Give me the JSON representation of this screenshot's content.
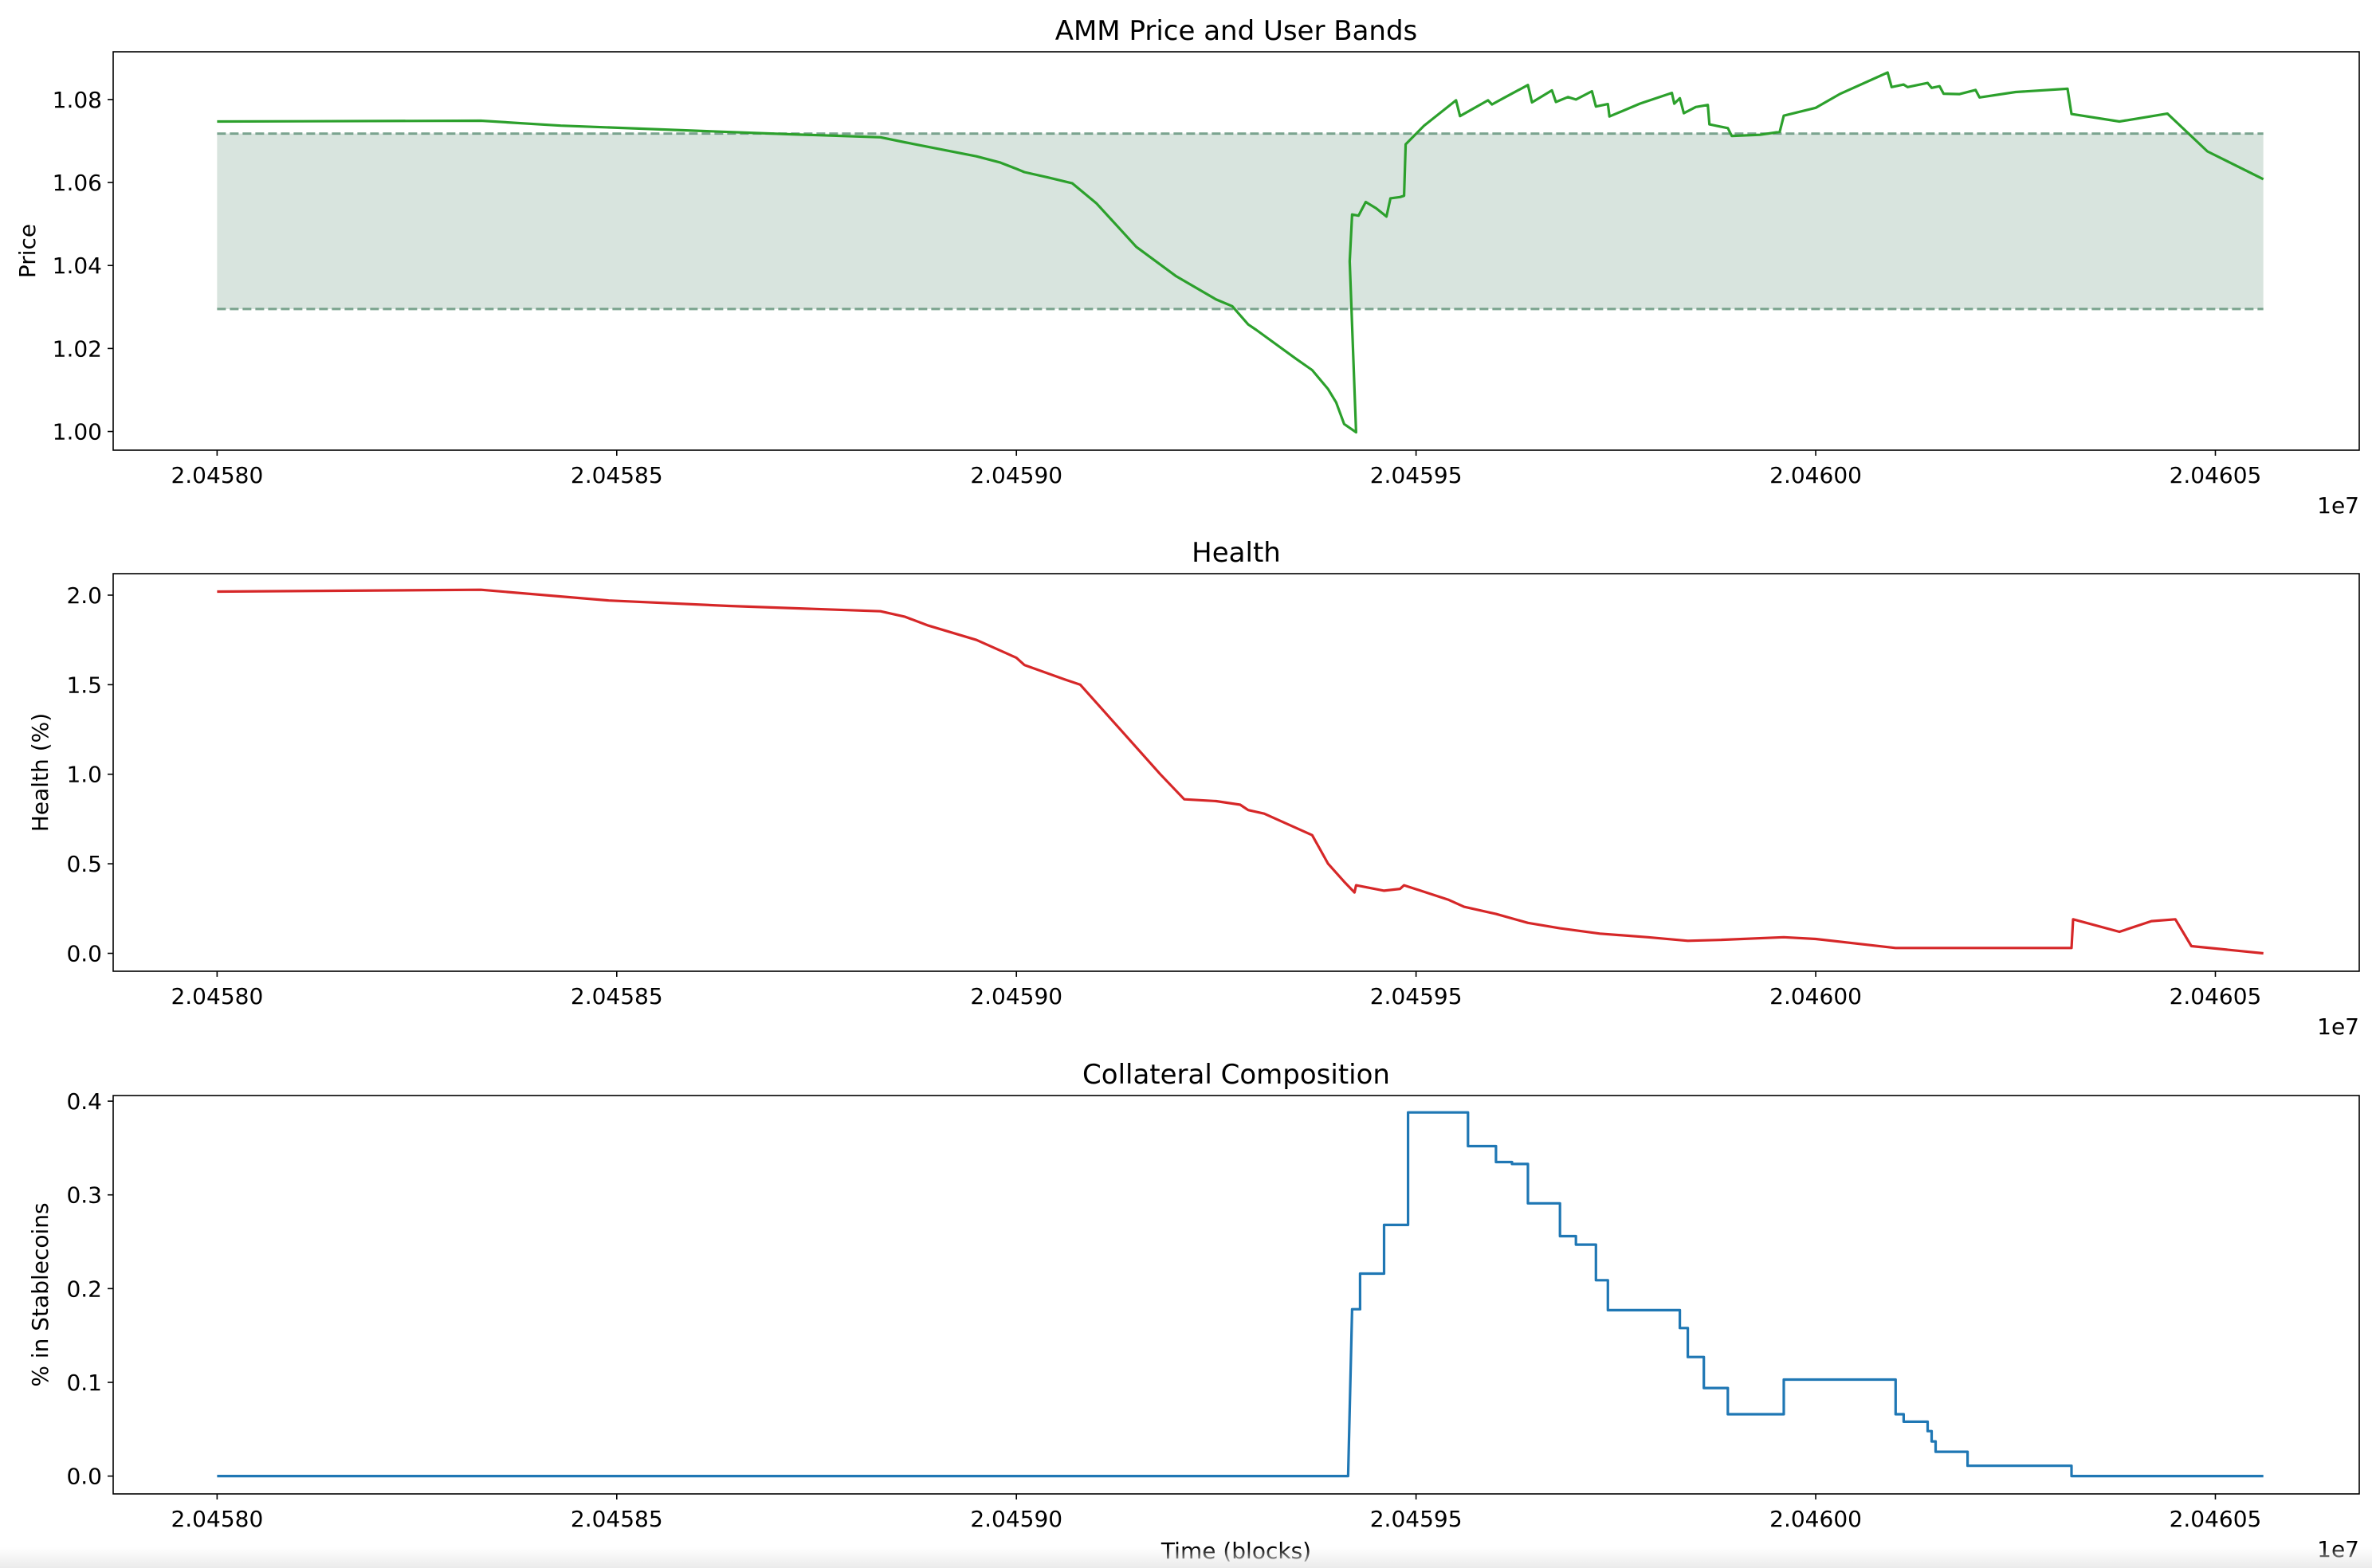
{
  "chart_data": [
    {
      "type": "line",
      "title": "AMM Price and User Bands",
      "xlabel": "",
      "ylabel": "Price",
      "x_offset_label": "1e7",
      "xlim": [
        2.045787,
        2.046068
      ],
      "ylim": [
        0.9955,
        1.0915
      ],
      "x_ticks": [
        2.0458,
        2.04585,
        2.0459,
        2.04595,
        2.046,
        2.04605
      ],
      "x_tick_labels": [
        "2.04580",
        "2.04585",
        "2.04590",
        "2.04595",
        "2.04600",
        "2.04605"
      ],
      "y_ticks": [
        1.0,
        1.02,
        1.04,
        1.06,
        1.08
      ],
      "y_tick_labels": [
        "1.00",
        "1.02",
        "1.04",
        "1.06",
        "1.08"
      ],
      "grid": false,
      "band": {
        "x_range": [
          2.0458,
          2.046056
        ],
        "lower": 1.0295,
        "upper": 1.0718,
        "color": "#2f6f4f"
      },
      "series": [
        {
          "color": "#2ca02c",
          "points": [
            [
              2.0458,
              1.0747
            ],
            [
              2.045833,
              1.0749
            ],
            [
              2.045843,
              1.0737
            ],
            [
              2.045858,
              1.0726
            ],
            [
              2.045872,
              1.0716
            ],
            [
              2.045883,
              1.0709
            ],
            [
              2.045886,
              1.0697
            ],
            [
              2.045895,
              1.0663
            ],
            [
              2.045898,
              1.0648
            ],
            [
              2.0459,
              1.0633
            ],
            [
              2.045901,
              1.0625
            ],
            [
              2.045904,
              1.0612
            ],
            [
              2.045907,
              1.0598
            ],
            [
              2.04591,
              1.055
            ],
            [
              2.045912,
              1.0508
            ],
            [
              2.045915,
              1.0445
            ],
            [
              2.04592,
              1.0374
            ],
            [
              2.045925,
              1.0318
            ],
            [
              2.045927,
              1.0302
            ],
            [
              2.045929,
              1.0258
            ],
            [
              2.04593,
              1.0245
            ],
            [
              2.045935,
              1.0175
            ],
            [
              2.045937,
              1.0148
            ],
            [
              2.045939,
              1.0102
            ],
            [
              2.04594,
              1.007
            ],
            [
              2.045941,
              1.0018
            ],
            [
              2.0459425,
              0.9998
            ],
            [
              2.0459417,
              1.041
            ],
            [
              2.045942,
              1.0523
            ],
            [
              2.0459428,
              1.052
            ],
            [
              2.0459437,
              1.0553
            ],
            [
              2.045945,
              1.0538
            ],
            [
              2.0459463,
              1.0518
            ],
            [
              2.0459468,
              1.0562
            ],
            [
              2.045948,
              1.0565
            ],
            [
              2.0459485,
              1.0568
            ],
            [
              2.0459487,
              1.0692
            ],
            [
              2.045951,
              1.0737
            ],
            [
              2.045955,
              1.0798
            ],
            [
              2.0459555,
              1.076
            ],
            [
              2.045959,
              1.0798
            ],
            [
              2.0459595,
              1.0788
            ],
            [
              2.045961,
              1.0804
            ],
            [
              2.045964,
              1.0835
            ],
            [
              2.0459645,
              1.0793
            ],
            [
              2.045967,
              1.0822
            ],
            [
              2.0459675,
              1.0794
            ],
            [
              2.045969,
              1.0806
            ],
            [
              2.04597,
              1.08
            ],
            [
              2.045972,
              1.082
            ],
            [
              2.0459725,
              1.0783
            ],
            [
              2.045974,
              1.0789
            ],
            [
              2.0459742,
              1.0759
            ],
            [
              2.045978,
              1.079
            ],
            [
              2.045982,
              1.0816
            ],
            [
              2.0459823,
              1.079
            ],
            [
              2.045983,
              1.0803
            ],
            [
              2.0459835,
              1.0767
            ],
            [
              2.045985,
              1.0782
            ],
            [
              2.0459865,
              1.0787
            ],
            [
              2.0459867,
              1.074
            ],
            [
              2.045989,
              1.0731
            ],
            [
              2.0459895,
              1.0712
            ],
            [
              2.045993,
              1.0715
            ],
            [
              2.0459955,
              1.0722
            ],
            [
              2.045996,
              1.0761
            ],
            [
              2.046,
              1.078
            ],
            [
              2.046003,
              1.0813
            ],
            [
              2.046009,
              1.0865
            ],
            [
              2.0460095,
              1.083
            ],
            [
              2.046011,
              1.0836
            ],
            [
              2.0460115,
              1.083
            ],
            [
              2.046014,
              1.084
            ],
            [
              2.0460145,
              1.0828
            ],
            [
              2.0460155,
              1.0832
            ],
            [
              2.046016,
              1.0814
            ],
            [
              2.046018,
              1.0813
            ],
            [
              2.04602,
              1.0823
            ],
            [
              2.0460205,
              1.0805
            ],
            [
              2.046025,
              1.0818
            ],
            [
              2.0460315,
              1.0826
            ],
            [
              2.046032,
              1.0765
            ],
            [
              2.046038,
              1.0747
            ],
            [
              2.046044,
              1.0766
            ],
            [
              2.046049,
              1.0675
            ],
            [
              2.046056,
              1.0608
            ]
          ]
        }
      ]
    },
    {
      "type": "line",
      "title": "Health",
      "xlabel": "",
      "ylabel": "Health (%)",
      "x_offset_label": "1e7",
      "xlim": [
        2.045787,
        2.046068
      ],
      "ylim": [
        -0.1,
        2.12
      ],
      "x_ticks": [
        2.0458,
        2.04585,
        2.0459,
        2.04595,
        2.046,
        2.04605
      ],
      "x_tick_labels": [
        "2.04580",
        "2.04585",
        "2.04590",
        "2.04595",
        "2.04600",
        "2.04605"
      ],
      "y_ticks": [
        0.0,
        0.5,
        1.0,
        1.5,
        2.0
      ],
      "y_tick_labels": [
        "0.0",
        "0.5",
        "1.0",
        "1.5",
        "2.0"
      ],
      "grid": false,
      "series": [
        {
          "color": "#d62728",
          "points": [
            [
              2.0458,
              2.02
            ],
            [
              2.045833,
              2.03
            ],
            [
              2.045849,
              1.97
            ],
            [
              2.045864,
              1.94
            ],
            [
              2.045883,
              1.91
            ],
            [
              2.045886,
              1.88
            ],
            [
              2.045889,
              1.83
            ],
            [
              2.045895,
              1.75
            ],
            [
              2.045899,
              1.67
            ],
            [
              2.0459,
              1.65
            ],
            [
              2.045901,
              1.61
            ],
            [
              2.045906,
              1.53
            ],
            [
              2.045908,
              1.5
            ],
            [
              2.045913,
              1.25
            ],
            [
              2.045918,
              1.0
            ],
            [
              2.045921,
              0.86
            ],
            [
              2.045925,
              0.85
            ],
            [
              2.045928,
              0.83
            ],
            [
              2.045929,
              0.8
            ],
            [
              2.045931,
              0.78
            ],
            [
              2.045937,
              0.66
            ],
            [
              2.045939,
              0.5
            ],
            [
              2.045941,
              0.4
            ],
            [
              2.0459423,
              0.34
            ],
            [
              2.0459425,
              0.38
            ],
            [
              2.045946,
              0.35
            ],
            [
              2.045948,
              0.36
            ],
            [
              2.0459485,
              0.38
            ],
            [
              2.045954,
              0.3
            ],
            [
              2.045956,
              0.26
            ],
            [
              2.04596,
              0.22
            ],
            [
              2.045964,
              0.17
            ],
            [
              2.045968,
              0.14
            ],
            [
              2.045973,
              0.11
            ],
            [
              2.045979,
              0.09
            ],
            [
              2.045984,
              0.07
            ],
            [
              2.045988,
              0.075
            ],
            [
              2.045996,
              0.09
            ],
            [
              2.046,
              0.08
            ],
            [
              2.04601,
              0.03
            ],
            [
              2.04602,
              0.03
            ],
            [
              2.046032,
              0.03
            ],
            [
              2.0460322,
              0.19
            ],
            [
              2.046038,
              0.12
            ],
            [
              2.046042,
              0.18
            ],
            [
              2.046045,
              0.19
            ],
            [
              2.046047,
              0.04
            ],
            [
              2.046056,
              0.0
            ]
          ]
        }
      ]
    },
    {
      "type": "line",
      "title": "Collateral Composition",
      "xlabel": "Time (blocks)",
      "ylabel": "% in Stablecoins",
      "x_offset_label": "1e7",
      "xlim": [
        2.045787,
        2.046068
      ],
      "ylim": [
        -0.019,
        0.406
      ],
      "x_ticks": [
        2.0458,
        2.04585,
        2.0459,
        2.04595,
        2.046,
        2.04605
      ],
      "x_tick_labels": [
        "2.04580",
        "2.04585",
        "2.04590",
        "2.04595",
        "2.04600",
        "2.04605"
      ],
      "y_ticks": [
        0.0,
        0.1,
        0.2,
        0.3,
        0.4
      ],
      "y_tick_labels": [
        "0.0",
        "0.1",
        "0.2",
        "0.3",
        "0.4"
      ],
      "grid": false,
      "series": [
        {
          "color": "#1f77b4",
          "points": [
            [
              2.0458,
              0.0
            ],
            [
              2.0459415,
              0.0
            ],
            [
              2.045942,
              0.178
            ],
            [
              2.045943,
              0.178
            ],
            [
              2.045943,
              0.216
            ],
            [
              2.045946,
              0.216
            ],
            [
              2.045946,
              0.268
            ],
            [
              2.045949,
              0.268
            ],
            [
              2.045949,
              0.388
            ],
            [
              2.0459565,
              0.388
            ],
            [
              2.0459565,
              0.352
            ],
            [
              2.04596,
              0.352
            ],
            [
              2.04596,
              0.335
            ],
            [
              2.045962,
              0.335
            ],
            [
              2.045962,
              0.333
            ],
            [
              2.045964,
              0.333
            ],
            [
              2.045964,
              0.291
            ],
            [
              2.045968,
              0.291
            ],
            [
              2.045968,
              0.256
            ],
            [
              2.04597,
              0.256
            ],
            [
              2.04597,
              0.247
            ],
            [
              2.0459725,
              0.247
            ],
            [
              2.0459725,
              0.209
            ],
            [
              2.045974,
              0.209
            ],
            [
              2.045974,
              0.177
            ],
            [
              2.045983,
              0.177
            ],
            [
              2.045983,
              0.158
            ],
            [
              2.045984,
              0.158
            ],
            [
              2.045984,
              0.127
            ],
            [
              2.045986,
              0.127
            ],
            [
              2.045986,
              0.094
            ],
            [
              2.045989,
              0.094
            ],
            [
              2.045989,
              0.066
            ],
            [
              2.045996,
              0.066
            ],
            [
              2.045996,
              0.103
            ],
            [
              2.04601,
              0.103
            ],
            [
              2.04601,
              0.066
            ],
            [
              2.046011,
              0.066
            ],
            [
              2.046011,
              0.058
            ],
            [
              2.046014,
              0.058
            ],
            [
              2.046014,
              0.048
            ],
            [
              2.0460145,
              0.048
            ],
            [
              2.0460145,
              0.037
            ],
            [
              2.046015,
              0.037
            ],
            [
              2.046015,
              0.026
            ],
            [
              2.046019,
              0.026
            ],
            [
              2.046019,
              0.011
            ],
            [
              2.046032,
              0.011
            ],
            [
              2.046032,
              0.0
            ],
            [
              2.046056,
              0.0
            ]
          ]
        }
      ]
    }
  ]
}
